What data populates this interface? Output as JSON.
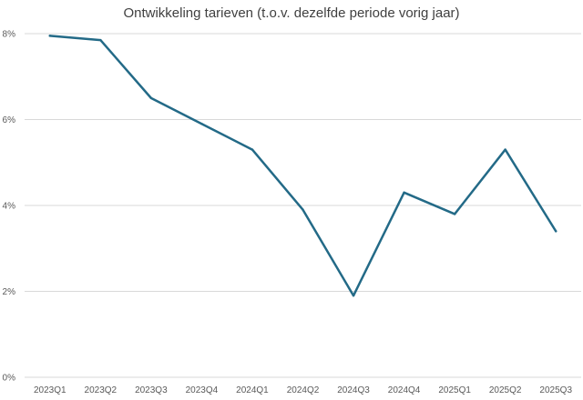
{
  "chart_data": {
    "type": "line",
    "title": "Ontwikkeling tarieven (t.o.v. dezelfde periode vorig jaar)",
    "categories": [
      "2023Q1",
      "2023Q2",
      "2023Q3",
      "2023Q4",
      "2024Q1",
      "2024Q2",
      "2024Q3",
      "2024Q4",
      "2025Q1",
      "2025Q2",
      "2025Q3"
    ],
    "series": [
      {
        "values": [
          7.95,
          7.85,
          6.5,
          5.9,
          5.3,
          3.9,
          1.9,
          4.3,
          3.8,
          5.3,
          3.4
        ],
        "color": "#236a87"
      }
    ],
    "xlabel": "",
    "ylabel": "",
    "ylim": [
      0,
      8
    ],
    "yticks": [
      0,
      2,
      4,
      6,
      8
    ],
    "ytick_labels": [
      "0%",
      "2%",
      "4%",
      "6%",
      "8%"
    ],
    "grid": true,
    "legend": "none"
  }
}
